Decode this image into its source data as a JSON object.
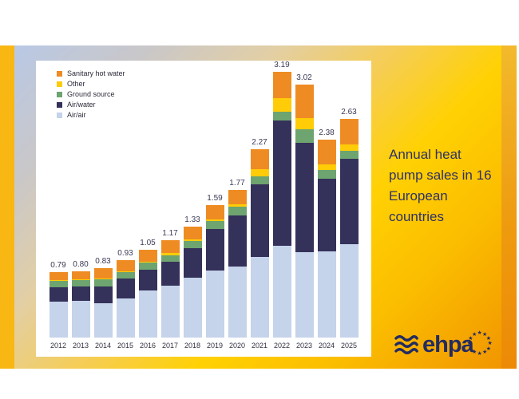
{
  "title": {
    "text": "Annual heat pump sales in 16 European countries"
  },
  "legend": {
    "items": [
      {
        "label": "Sanitary hot water",
        "color": "#ee8c23"
      },
      {
        "label": "Other",
        "color": "#ffcc07"
      },
      {
        "label": "Ground source",
        "color": "#6da46f"
      },
      {
        "label": "Air/water",
        "color": "#34315a"
      },
      {
        "label": "Air/air",
        "color": "#c5d3eb"
      }
    ]
  },
  "logo": {
    "text": "ehpa",
    "wave_icon": "triple-wave-icon",
    "stars_icon": "eu-stars-circle-icon",
    "stars_count": 12,
    "color": "#232b60"
  },
  "colors": {
    "card_left_strip": "#f8b713",
    "card_right_strip": "#ed8a05",
    "gradient_top_left": "#b7c9e8",
    "gradient_bottom_right": "#f09200",
    "panel_background": "#ffffff",
    "title_text": "#2f3166",
    "value_label_text": "#3a3a55",
    "axis_label_text": "#30303f"
  },
  "chart_data": {
    "type": "bar",
    "stacked": true,
    "grid": false,
    "legend_position": "top-left",
    "title": "Annual heat pump sales in 16 European countries",
    "xlabel": "",
    "ylabel": "",
    "categories": [
      "2012",
      "2013",
      "2014",
      "2015",
      "2016",
      "2017",
      "2018",
      "2019",
      "2020",
      "2021",
      "2022",
      "2023",
      "2024",
      "2025"
    ],
    "totals": [
      "0.79",
      "0.80",
      "0.83",
      "0.93",
      "1.05",
      "1.17",
      "1.33",
      "1.59",
      "1.77",
      "2.27",
      "3.19",
      "3.02",
      "2.38",
      "2.63"
    ],
    "series_order": "bottom-to-top",
    "series": [
      {
        "name": "Air/air",
        "color": "#c5d3eb",
        "values": [
          0.43,
          0.44,
          0.41,
          0.47,
          0.56,
          0.62,
          0.72,
          0.8,
          0.85,
          0.97,
          1.1,
          1.02,
          1.03,
          1.12
        ]
      },
      {
        "name": "Air/water",
        "color": "#34315a",
        "values": [
          0.17,
          0.17,
          0.2,
          0.24,
          0.25,
          0.29,
          0.35,
          0.5,
          0.61,
          0.87,
          1.5,
          1.31,
          0.87,
          1.02
        ]
      },
      {
        "name": "Ground source",
        "color": "#6da46f",
        "values": [
          0.08,
          0.08,
          0.09,
          0.08,
          0.09,
          0.08,
          0.09,
          0.1,
          0.11,
          0.1,
          0.11,
          0.16,
          0.11,
          0.1
        ]
      },
      {
        "name": "Other",
        "color": "#ffcc07",
        "values": [
          0.01,
          0.01,
          0.01,
          0.01,
          0.01,
          0.03,
          0.02,
          0.02,
          0.03,
          0.09,
          0.16,
          0.13,
          0.07,
          0.08
        ]
      },
      {
        "name": "Sanitary hot water",
        "color": "#ee8c23",
        "values": [
          0.1,
          0.1,
          0.12,
          0.13,
          0.14,
          0.15,
          0.15,
          0.17,
          0.17,
          0.24,
          0.32,
          0.4,
          0.3,
          0.31
        ]
      }
    ]
  }
}
